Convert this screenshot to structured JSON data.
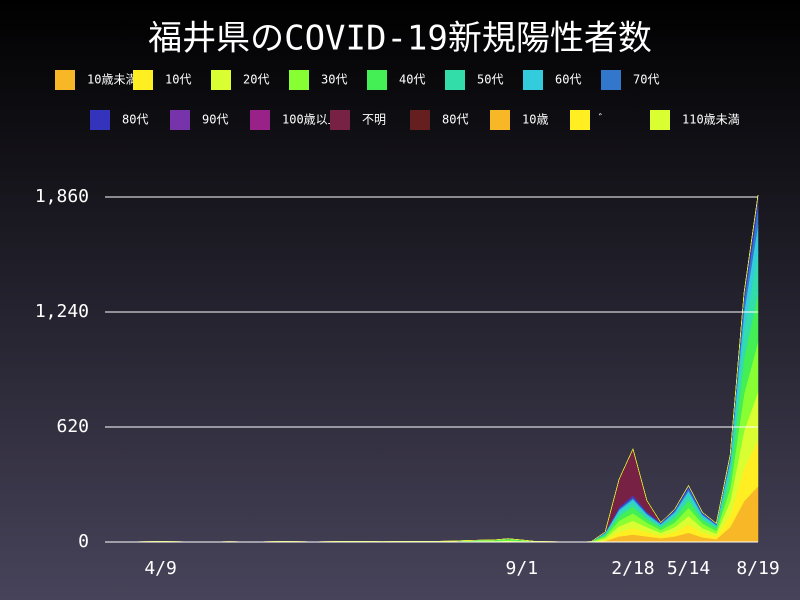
{
  "chart_data": {
    "type": "stacked-area",
    "title": "福井県のCOVID-19新規陽性者数",
    "categories": [
      null,
      null,
      null,
      null,
      "4/9",
      null,
      null,
      null,
      null,
      null,
      null,
      null,
      null,
      null,
      null,
      null,
      null,
      null,
      null,
      null,
      null,
      null,
      null,
      null,
      null,
      null,
      null,
      null,
      null,
      null,
      "9/1",
      null,
      null,
      null,
      null,
      null,
      null,
      null,
      "2/18",
      null,
      null,
      null,
      "5/14",
      null,
      null,
      null,
      null,
      "8/19"
    ],
    "ylim": [
      0,
      1860
    ],
    "yticks": [
      0,
      620,
      {
        "value": 1240,
        "label": "1,240"
      },
      {
        "value": 1860,
        "label": "1,860"
      }
    ],
    "grid": true,
    "series": [
      {
        "name": "10歳未満",
        "color": "#f7b726",
        "values": [
          0,
          0,
          0,
          0,
          0,
          0,
          0,
          0,
          0,
          0,
          0,
          0,
          0,
          0,
          0,
          0,
          0,
          0,
          0,
          0,
          0,
          0,
          0,
          0,
          0,
          0,
          0,
          0,
          0,
          0,
          0,
          0,
          0,
          0,
          0,
          0,
          5,
          30,
          40,
          30,
          20,
          30,
          50,
          25,
          15,
          80,
          220,
          300
        ]
      },
      {
        "name": "10代",
        "color": "#ffee22",
        "values": [
          0,
          0,
          0,
          0,
          0,
          0,
          0,
          0,
          0,
          0,
          0,
          0,
          0,
          0,
          0,
          0,
          0,
          0,
          0,
          0,
          0,
          0,
          0,
          0,
          0,
          0,
          0,
          0,
          0,
          2,
          1,
          0,
          0,
          0,
          0,
          0,
          5,
          25,
          35,
          25,
          15,
          25,
          45,
          25,
          15,
          70,
          180,
          250
        ]
      },
      {
        "name": "20代",
        "color": "#d9ff33",
        "values": [
          0,
          0,
          1,
          1,
          1,
          1,
          0,
          0,
          0,
          1,
          0,
          0,
          1,
          1,
          1,
          0,
          1,
          1,
          1,
          1,
          0,
          1,
          1,
          2,
          1,
          2,
          3,
          3,
          4,
          5,
          3,
          1,
          1,
          0,
          0,
          1,
          10,
          30,
          40,
          25,
          15,
          25,
          45,
          25,
          15,
          70,
          200,
          260
        ]
      },
      {
        "name": "30代",
        "color": "#88ff33",
        "values": [
          0,
          0,
          0,
          1,
          1,
          0,
          1,
          0,
          1,
          1,
          1,
          1,
          1,
          1,
          0,
          1,
          1,
          1,
          2,
          1,
          1,
          1,
          1,
          1,
          1,
          2,
          2,
          3,
          3,
          4,
          3,
          1,
          1,
          1,
          0,
          1,
          10,
          30,
          40,
          25,
          15,
          25,
          45,
          25,
          15,
          70,
          200,
          270
        ]
      },
      {
        "name": "40代",
        "color": "#44ee55",
        "values": [
          0,
          0,
          0,
          0,
          1,
          1,
          0,
          0,
          0,
          0,
          0,
          0,
          0,
          1,
          1,
          0,
          0,
          1,
          1,
          1,
          1,
          1,
          1,
          1,
          1,
          1,
          2,
          2,
          3,
          4,
          3,
          1,
          0,
          0,
          0,
          0,
          8,
          25,
          35,
          20,
          15,
          25,
          40,
          20,
          15,
          65,
          190,
          260
        ]
      },
      {
        "name": "50代",
        "color": "#33ddaa",
        "values": [
          0,
          0,
          0,
          0,
          0,
          0,
          0,
          0,
          0,
          0,
          0,
          0,
          0,
          0,
          0,
          0,
          0,
          0,
          0,
          0,
          0,
          0,
          1,
          0,
          1,
          0,
          1,
          1,
          1,
          2,
          1,
          0,
          0,
          0,
          0,
          0,
          6,
          20,
          25,
          15,
          10,
          18,
          30,
          15,
          10,
          50,
          150,
          220
        ]
      },
      {
        "name": "60代",
        "color": "#33ccdd",
        "values": [
          0,
          0,
          0,
          0,
          0,
          0,
          0,
          0,
          0,
          0,
          0,
          0,
          0,
          0,
          0,
          0,
          0,
          0,
          0,
          0,
          0,
          0,
          0,
          0,
          0,
          0,
          0,
          1,
          0,
          1,
          0,
          0,
          0,
          0,
          0,
          0,
          4,
          12,
          15,
          10,
          6,
          12,
          20,
          10,
          6,
          30,
          100,
          150
        ]
      },
      {
        "name": "70代",
        "color": "#3377cc",
        "values": [
          0,
          0,
          0,
          0,
          0,
          0,
          0,
          0,
          0,
          0,
          0,
          0,
          0,
          0,
          0,
          0,
          0,
          0,
          0,
          0,
          0,
          0,
          0,
          0,
          0,
          0,
          0,
          0,
          0,
          0,
          0,
          0,
          0,
          0,
          0,
          0,
          3,
          8,
          10,
          6,
          4,
          8,
          15,
          8,
          4,
          20,
          60,
          100
        ]
      },
      {
        "name": "80代",
        "color": "#3333bb",
        "values": [
          0,
          0,
          0,
          0,
          0,
          0,
          0,
          0,
          0,
          0,
          0,
          0,
          0,
          0,
          0,
          0,
          0,
          0,
          0,
          0,
          0,
          0,
          0,
          0,
          0,
          0,
          0,
          0,
          0,
          0,
          0,
          0,
          0,
          0,
          0,
          0,
          2,
          5,
          8,
          5,
          3,
          5,
          10,
          5,
          3,
          10,
          30,
          40
        ]
      },
      {
        "name": "90代",
        "color": "#7733aa",
        "values": [
          0,
          0,
          0,
          0,
          0,
          0,
          0,
          0,
          0,
          0,
          0,
          0,
          0,
          0,
          0,
          0,
          0,
          0,
          0,
          0,
          0,
          0,
          0,
          0,
          0,
          0,
          0,
          0,
          0,
          0,
          0,
          0,
          0,
          0,
          0,
          0,
          1,
          3,
          4,
          3,
          2,
          3,
          5,
          2,
          2,
          5,
          15,
          20
        ]
      },
      {
        "name": "100歳以上",
        "color": "#992288",
        "values": [
          0,
          0,
          0,
          0,
          0,
          0,
          0,
          0,
          0,
          0,
          0,
          0,
          0,
          0,
          0,
          0,
          0,
          0,
          0,
          0,
          0,
          0,
          0,
          0,
          0,
          0,
          0,
          0,
          0,
          0,
          0,
          0,
          0,
          0,
          0,
          0,
          0,
          0,
          0,
          0,
          0,
          0,
          0,
          0,
          0,
          0,
          0,
          0
        ]
      },
      {
        "name": "不明",
        "color": "#772244",
        "values": [
          0,
          0,
          0,
          0,
          0,
          0,
          0,
          0,
          0,
          0,
          0,
          0,
          0,
          0,
          0,
          0,
          0,
          0,
          0,
          0,
          0,
          0,
          0,
          0,
          0,
          0,
          0,
          0,
          0,
          0,
          0,
          0,
          0,
          0,
          0,
          0,
          0,
          150,
          250,
          60,
          0,
          0,
          0,
          0,
          0,
          0,
          0,
          0
        ]
      },
      {
        "name": "80代゙",
        "color": "#661f1f",
        "values": [
          0,
          0,
          0,
          0,
          0,
          0,
          0,
          0,
          0,
          0,
          0,
          0,
          0,
          0,
          0,
          0,
          0,
          0,
          0,
          0,
          0,
          0,
          0,
          0,
          0,
          0,
          0,
          0,
          0,
          0,
          0,
          0,
          0,
          0,
          0,
          0,
          0,
          0,
          0,
          0,
          0,
          0,
          0,
          0,
          0,
          0,
          0,
          0
        ]
      },
      {
        "name": "10歳",
        "color": "#f7b726",
        "values": [
          0,
          0,
          0,
          0,
          0,
          0,
          0,
          0,
          0,
          0,
          0,
          0,
          0,
          0,
          0,
          0,
          0,
          0,
          0,
          0,
          0,
          0,
          0,
          0,
          0,
          0,
          0,
          0,
          0,
          0,
          0,
          0,
          0,
          0,
          0,
          0,
          0,
          0,
          0,
          0,
          0,
          0,
          0,
          0,
          0,
          0,
          0,
          0
        ]
      },
      {
        "name": "゙",
        "color": "#ffee22",
        "values": [
          0,
          0,
          0,
          0,
          0,
          0,
          0,
          0,
          0,
          0,
          0,
          0,
          0,
          0,
          0,
          0,
          0,
          0,
          0,
          0,
          0,
          0,
          0,
          0,
          0,
          0,
          0,
          0,
          0,
          0,
          0,
          0,
          0,
          0,
          0,
          0,
          0,
          0,
          0,
          0,
          0,
          0,
          0,
          0,
          0,
          0,
          0,
          0
        ]
      },
      {
        "name": "110歳未満",
        "color": "#d9ff33",
        "values": [
          0,
          0,
          0,
          0,
          0,
          0,
          0,
          0,
          0,
          0,
          0,
          0,
          0,
          0,
          0,
          0,
          0,
          0,
          0,
          0,
          0,
          0,
          0,
          0,
          0,
          0,
          0,
          0,
          0,
          0,
          0,
          0,
          0,
          0,
          0,
          0,
          0,
          0,
          0,
          0,
          0,
          0,
          0,
          0,
          0,
          0,
          0,
          0
        ]
      }
    ]
  }
}
